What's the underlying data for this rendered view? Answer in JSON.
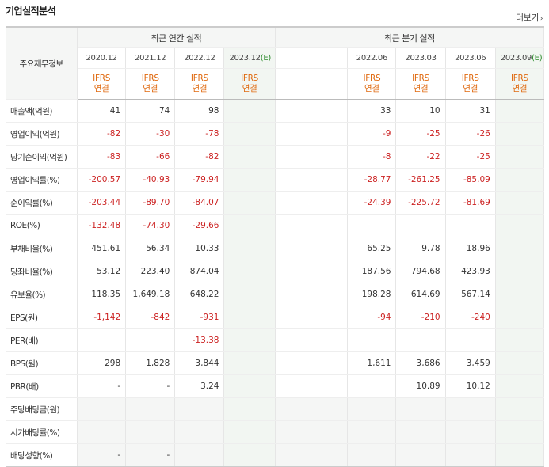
{
  "title": "기업실적분석",
  "more_label": "더보기",
  "header": {
    "row_label": "주요재무정보",
    "annual_group": "최근 연간 실적",
    "quarter_group": "최근 분기 실적",
    "annual_periods": [
      "2020.12",
      "2021.12",
      "2022.12",
      "2023.12"
    ],
    "annual_est_tag": "(E)",
    "quarter_periods": [
      "",
      "",
      "2022.06",
      "2023.03",
      "2023.06",
      "2023.09"
    ],
    "quarter_est_tag": "(E)",
    "ifrs_top": "IFRS",
    "ifrs_bottom": "연결"
  },
  "rows": [
    {
      "label": "매출액(억원)",
      "annual": [
        "41",
        "74",
        "98",
        ""
      ],
      "quarter": [
        "",
        "",
        "33",
        "10",
        "31",
        ""
      ]
    },
    {
      "label": "영업이익(억원)",
      "annual": [
        "-82",
        "-30",
        "-78",
        ""
      ],
      "quarter": [
        "",
        "",
        "-9",
        "-25",
        "-26",
        ""
      ]
    },
    {
      "label": "당기순이익(억원)",
      "annual": [
        "-83",
        "-66",
        "-82",
        ""
      ],
      "quarter": [
        "",
        "",
        "-8",
        "-22",
        "-25",
        ""
      ]
    },
    {
      "label": "영업이익률(%)",
      "annual": [
        "-200.57",
        "-40.93",
        "-79.94",
        ""
      ],
      "quarter": [
        "",
        "",
        "-28.77",
        "-261.25",
        "-85.09",
        ""
      ]
    },
    {
      "label": "순이익률(%)",
      "annual": [
        "-203.44",
        "-89.70",
        "-84.07",
        ""
      ],
      "quarter": [
        "",
        "",
        "-24.39",
        "-225.72",
        "-81.69",
        ""
      ]
    },
    {
      "label": "ROE(%)",
      "annual": [
        "-132.48",
        "-74.30",
        "-29.66",
        ""
      ],
      "quarter": [
        "",
        "",
        "",
        "",
        "",
        ""
      ]
    },
    {
      "label": "부채비율(%)",
      "annual": [
        "451.61",
        "56.34",
        "10.33",
        ""
      ],
      "quarter": [
        "",
        "",
        "65.25",
        "9.78",
        "18.96",
        ""
      ]
    },
    {
      "label": "당좌비율(%)",
      "annual": [
        "53.12",
        "223.40",
        "874.04",
        ""
      ],
      "quarter": [
        "",
        "",
        "187.56",
        "794.68",
        "423.93",
        ""
      ]
    },
    {
      "label": "유보율(%)",
      "annual": [
        "118.35",
        "1,649.18",
        "648.22",
        ""
      ],
      "quarter": [
        "",
        "",
        "198.28",
        "614.69",
        "567.14",
        ""
      ]
    },
    {
      "label": "EPS(원)",
      "annual": [
        "-1,142",
        "-842",
        "-931",
        ""
      ],
      "quarter": [
        "",
        "",
        "-94",
        "-210",
        "-240",
        ""
      ]
    },
    {
      "label": "PER(배)",
      "annual": [
        "",
        "",
        "-13.38",
        ""
      ],
      "quarter": [
        "",
        "",
        "",
        "",
        "",
        ""
      ]
    },
    {
      "label": "BPS(원)",
      "annual": [
        "298",
        "1,828",
        "3,844",
        ""
      ],
      "quarter": [
        "",
        "",
        "1,611",
        "3,686",
        "3,459",
        ""
      ]
    },
    {
      "label": "PBR(배)",
      "annual": [
        "-",
        "-",
        "3.24",
        ""
      ],
      "quarter": [
        "",
        "",
        "",
        "10.89",
        "10.12",
        ""
      ]
    },
    {
      "label": "주당배당금(원)",
      "annual": [
        "",
        "",
        "",
        ""
      ],
      "quarter": [
        "",
        "",
        "",
        "",
        "",
        ""
      ]
    },
    {
      "label": "시가배당률(%)",
      "annual": [
        "",
        "",
        "",
        ""
      ],
      "quarter": [
        "",
        "",
        "",
        "",
        "",
        ""
      ]
    },
    {
      "label": "배당성향(%)",
      "annual": [
        "-",
        "-",
        "",
        ""
      ],
      "quarter": [
        "",
        "",
        "",
        "",
        "",
        ""
      ]
    }
  ],
  "colors": {
    "negative": "#cc2222",
    "ifrs": "#e06a10",
    "estimate": "#2a8a2a"
  }
}
